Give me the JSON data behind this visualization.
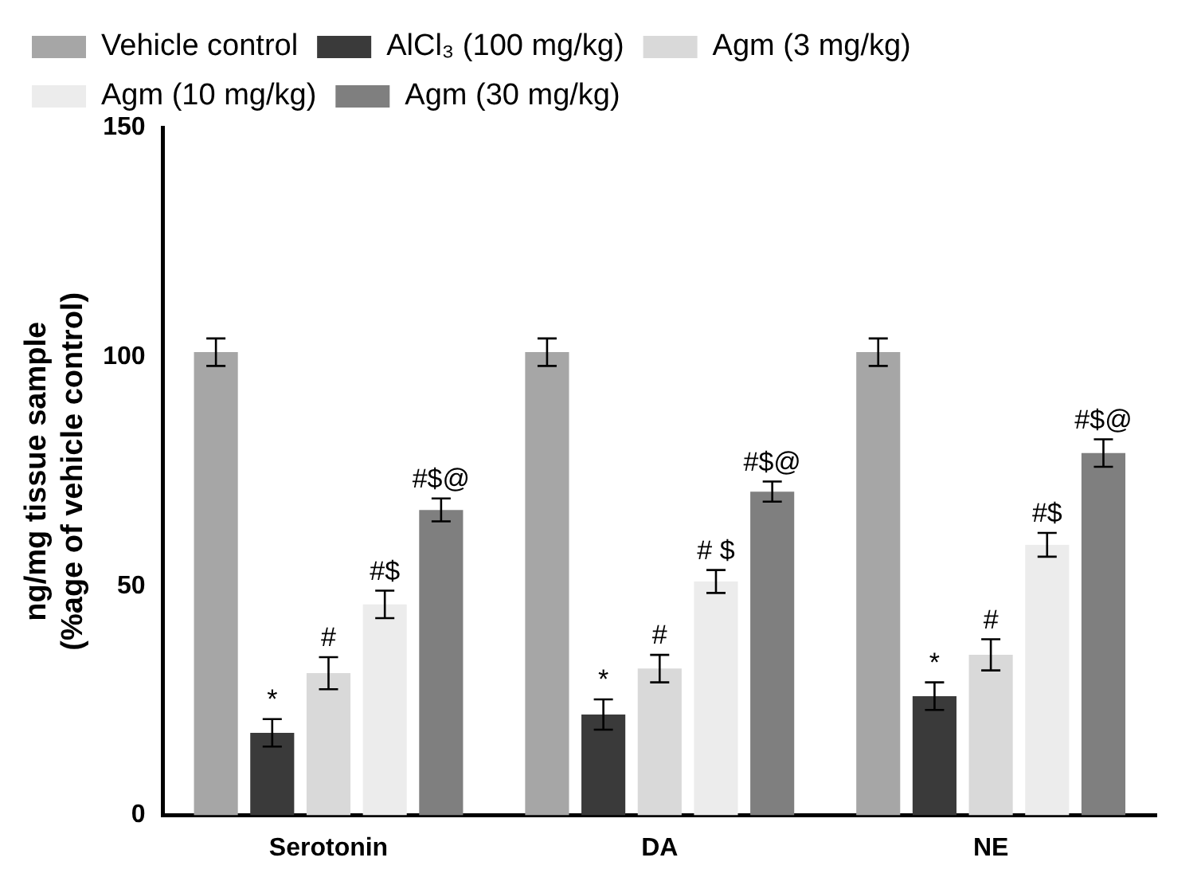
{
  "chart_data": {
    "type": "bar",
    "ylabel": "ng/mg tissue sample\n(%age of vehicle control)",
    "categories": [
      "Serotonin",
      "DA",
      "NE"
    ],
    "series": [
      {
        "name": "Vehicle control",
        "color": "#a6a6a6",
        "values": [
          101,
          101,
          101
        ],
        "errors": [
          3,
          3,
          3
        ]
      },
      {
        "name": "AlCl₃ (100 mg/kg)",
        "color": "#3a3a3a",
        "values": [
          18,
          22,
          26
        ],
        "errors": [
          3,
          3.3,
          3
        ],
        "value_labels": [
          "*",
          "*",
          "*"
        ]
      },
      {
        "name": "Agm (3 mg/kg)",
        "color": "#d9d9d9",
        "values": [
          31,
          32,
          35
        ],
        "errors": [
          3.5,
          3,
          3.4
        ],
        "value_labels": [
          "#",
          "#",
          "#"
        ]
      },
      {
        "name": "Agm (10 mg/kg)",
        "color": "#ececec",
        "values": [
          46,
          51,
          59
        ],
        "errors": [
          3,
          2.5,
          2.6
        ],
        "value_labels": [
          "#$",
          "# $",
          "#$"
        ]
      },
      {
        "name": "Agm (30 mg/kg)",
        "color": "#7f7f7f",
        "values": [
          66.6,
          70.6,
          79
        ],
        "errors": [
          2.5,
          2.2,
          3
        ],
        "value_labels": [
          "#$@",
          "#$@",
          "#$@"
        ]
      }
    ],
    "ylim": [
      0,
      150
    ],
    "yticks": [
      0,
      50,
      100,
      150
    ],
    "grid": false,
    "legend": "top left"
  }
}
